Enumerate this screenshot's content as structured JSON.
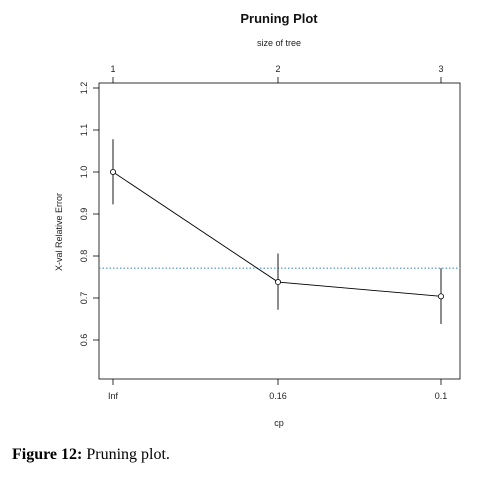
{
  "chart_data": {
    "type": "line",
    "title": "Pruning Plot",
    "top_axis_label": "size of tree",
    "top_ticks": [
      "1",
      "2",
      "3"
    ],
    "xlabel": "cp",
    "x_ticks": [
      "Inf",
      "0.16",
      "0.1"
    ],
    "ylabel": "X-val Relative Error",
    "y_ticks": [
      "0.6",
      "0.7",
      "0.8",
      "0.9",
      "1.0",
      "1.1",
      "1.2"
    ],
    "ylim": [
      0.56,
      1.2
    ],
    "series": [
      {
        "values": [
          1.0,
          0.738,
          0.704
        ],
        "error_low": [
          0.923,
          0.672,
          0.638
        ],
        "error_high": [
          1.078,
          0.806,
          0.771
        ]
      }
    ],
    "reference_line": {
      "value": 0.771,
      "style": "dotted",
      "color": "#4a90c8"
    },
    "grid": false
  },
  "caption": {
    "label": "Figure 12:",
    "text": " Pruning plot."
  }
}
